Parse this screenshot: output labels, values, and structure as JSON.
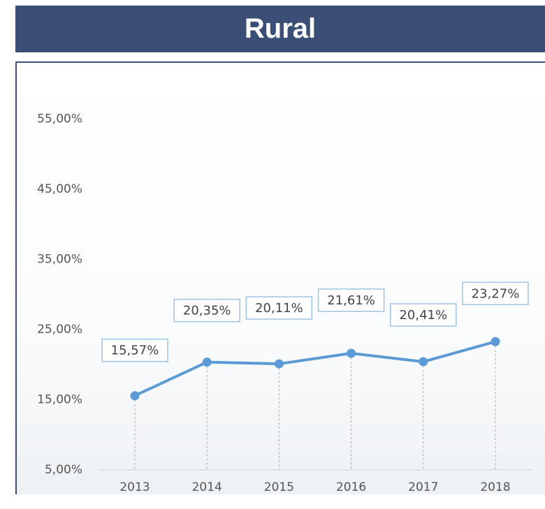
{
  "chart_data": {
    "type": "line",
    "title": "Rural",
    "categories": [
      "2013",
      "2014",
      "2015",
      "2016",
      "2017",
      "2018"
    ],
    "series": [
      {
        "name": "Rural",
        "color": "#5b9bd5",
        "values": [
          15.57,
          20.35,
          20.11,
          21.61,
          20.41,
          23.27
        ],
        "value_labels": [
          "15,57%",
          "20,35%",
          "20,11%",
          "21,61%",
          "20,41%",
          "23,27%"
        ]
      }
    ],
    "ylim": [
      5,
      60
    ],
    "yticks": [
      {
        "value": 5,
        "label": "5,00%"
      },
      {
        "value": 15,
        "label": "15,00%"
      },
      {
        "value": 25,
        "label": "25,00%"
      },
      {
        "value": 35,
        "label": "35,00%"
      },
      {
        "value": 45,
        "label": "45,00%"
      },
      {
        "value": 55,
        "label": "55,00%"
      }
    ]
  }
}
